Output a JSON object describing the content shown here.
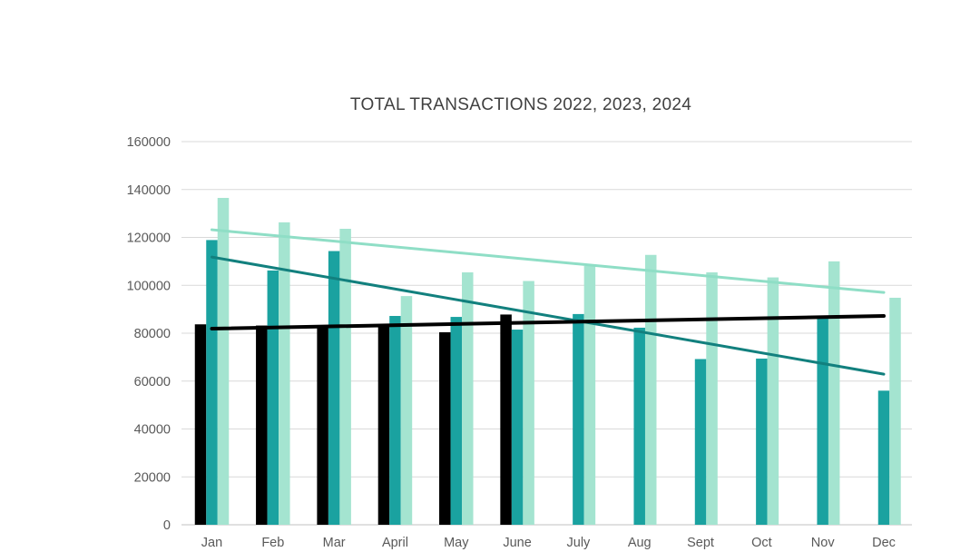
{
  "chart_data": {
    "type": "bar",
    "title": "TOTAL TRANSACTIONS 2022, 2023, 2024",
    "xlabel": "",
    "ylabel": "",
    "categories": [
      "Jan",
      "Feb",
      "Mar",
      "April",
      "May",
      "June",
      "July",
      "Aug",
      "Sept",
      "Oct",
      "Nov",
      "Dec"
    ],
    "series": [
      {
        "name": "2024",
        "color": "#000000",
        "values": [
          83700,
          83200,
          83100,
          83000,
          80400,
          87800,
          null,
          null,
          null,
          null,
          null,
          null
        ]
      },
      {
        "name": "2023",
        "color": "#1AA2A0",
        "values": [
          118900,
          106200,
          114300,
          87200,
          86800,
          81500,
          88000,
          82300,
          69200,
          69400,
          86900,
          56000
        ]
      },
      {
        "name": "2022",
        "color": "#A4E4D0",
        "values": [
          136500,
          126300,
          123600,
          95500,
          105400,
          101800,
          108100,
          112700,
          105400,
          103300,
          110000,
          94800
        ]
      }
    ],
    "trendlines": [
      {
        "series": "2022",
        "color": "#8FDEC6",
        "start": 123200,
        "end": 97000
      },
      {
        "series": "2023",
        "color": "#12807E",
        "start": 111800,
        "end": 62900
      },
      {
        "series": "2024",
        "color": "#000000",
        "start": 81900,
        "end": 87200
      }
    ],
    "ylim": [
      0,
      160000
    ],
    "yticks": [
      0,
      20000,
      40000,
      60000,
      80000,
      100000,
      120000,
      140000,
      160000
    ],
    "grid": true,
    "legend_position": "none",
    "colors": {
      "background": "#FFFFFF",
      "gridline": "#D9D9D9",
      "axis_line": "#C0C0C0",
      "tick_label": "#595959",
      "title": "#404040"
    }
  }
}
